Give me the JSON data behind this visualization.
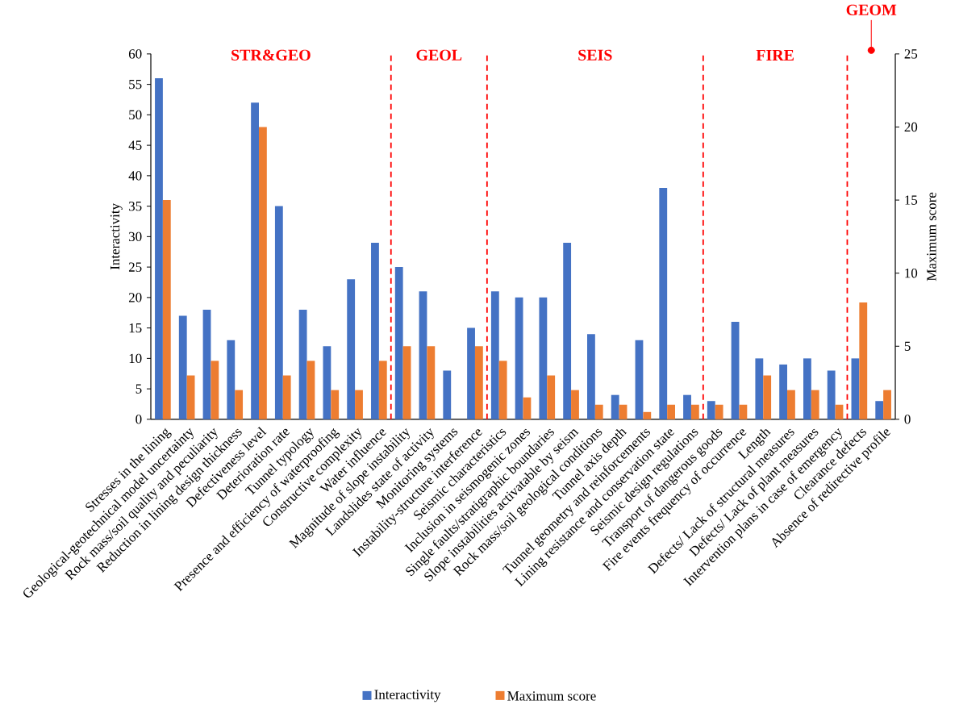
{
  "chart_data": {
    "type": "bar",
    "categories": [
      "Stresses in the lining",
      "Geological-geotechnical model uncertainty",
      "Rock mass/soil quality and peculiarity",
      "Reduction in lining design thickness",
      "Defectiveness level",
      "Deterioration rate",
      "Tunnel typology",
      "Presence and efficiency of waterproofing",
      "Constructive complexity",
      "Water influence",
      "Magnitude of slope instability",
      "Landslides state of activity",
      "Monitoring systems",
      "Instability-structure interference",
      "Seismic characteristics",
      "Inclusion in seismogenic zones",
      "Single faults/stratigraphic boundaries",
      "Slope instabilities activatable by seism",
      "Rock mass/soil geological conditions",
      "Tunnel axis depth",
      "Tunnel geometry and reinforcements",
      "Lining resistance and conservation state",
      "Seismic design regulations",
      "Transport of dangerous goods",
      "Fire events frequency of occurrence",
      "Length",
      "Defects/ Lack of structural measures",
      "Defects/ Lack of plant measures",
      "Intervention plans in case of emergency",
      "Clearance defects",
      "Absence of redirective profile"
    ],
    "series": [
      {
        "name": "Interactivity",
        "color": "#4472c4",
        "values": [
          56,
          17,
          18,
          13,
          52,
          35,
          18,
          12,
          23,
          29,
          25,
          21,
          8,
          15,
          21,
          20,
          20,
          29,
          14,
          4,
          13,
          38,
          4,
          3,
          16,
          10,
          9,
          10,
          8,
          10,
          3
        ]
      },
      {
        "name": "Maximum score",
        "color": "#ed7d31",
        "axis": "y2",
        "values": [
          15,
          3,
          4,
          2,
          20,
          3,
          4,
          2,
          2,
          4,
          5,
          5,
          0,
          5,
          4,
          1.5,
          3,
          2,
          1,
          1,
          0.5,
          1,
          1,
          1,
          1,
          3,
          2,
          2,
          1,
          8,
          2
        ]
      }
    ],
    "ylabel": "Interactivity",
    "y2label": "Maximum score",
    "ylim": [
      0,
      60
    ],
    "yticks": [
      0,
      5,
      10,
      15,
      20,
      25,
      30,
      35,
      40,
      45,
      50,
      55,
      60
    ],
    "y2lim": [
      0,
      25
    ],
    "y2ticks": [
      0,
      5,
      10,
      15,
      20,
      25
    ],
    "annotations": [
      "STR&GEO",
      "GEOL",
      "SEIS",
      "FIRE",
      "GEOM"
    ],
    "legend": "bottom",
    "grid": false
  }
}
